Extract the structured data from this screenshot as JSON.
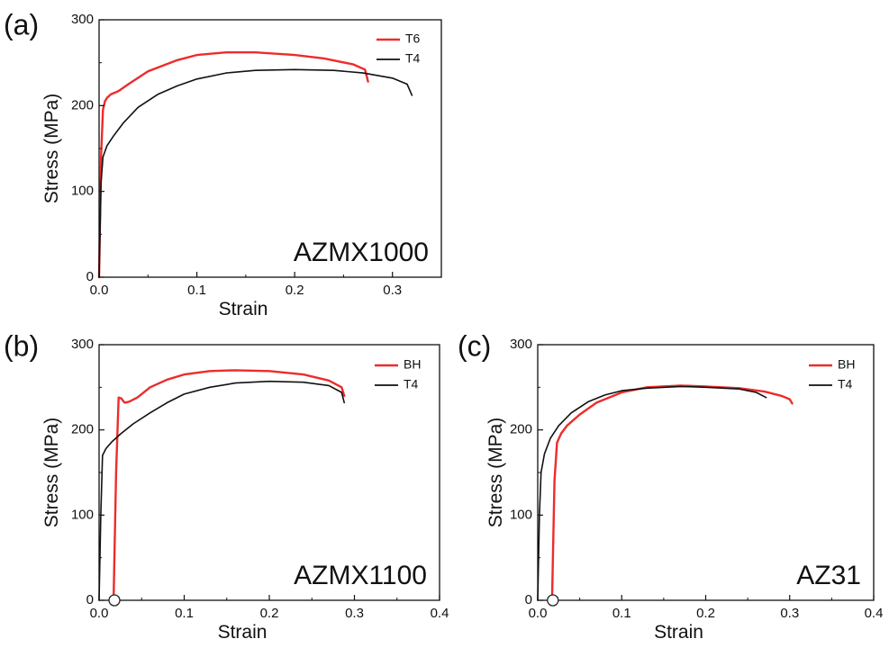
{
  "chart_data": [
    {
      "type": "line",
      "panel": "(a)",
      "sample": "AZMX1000",
      "xlabel": "Strain",
      "ylabel": "Stress (MPa)",
      "xlim": [
        0,
        0.35
      ],
      "ylim": [
        0,
        300
      ],
      "xticks": [
        "0.0",
        "0.1",
        "0.2",
        "0.3"
      ],
      "yticks": [
        "0",
        "100",
        "200",
        "300"
      ],
      "legend_position": "top-right",
      "series": [
        {
          "name": "T6",
          "color": "#ee2b2b",
          "x": [
            0.0,
            0.002,
            0.004,
            0.006,
            0.008,
            0.012,
            0.02,
            0.03,
            0.05,
            0.08,
            0.1,
            0.13,
            0.16,
            0.2,
            0.23,
            0.26,
            0.272,
            0.275
          ],
          "y": [
            0,
            140,
            195,
            205,
            209,
            213,
            217,
            225,
            240,
            253,
            259,
            262,
            262,
            259,
            255,
            248,
            242,
            228
          ]
        },
        {
          "name": "T4",
          "color": "#111111",
          "x": [
            0.0,
            0.002,
            0.004,
            0.008,
            0.015,
            0.025,
            0.04,
            0.06,
            0.08,
            0.1,
            0.13,
            0.16,
            0.2,
            0.24,
            0.27,
            0.3,
            0.315,
            0.32
          ],
          "y": [
            0,
            110,
            140,
            153,
            165,
            180,
            198,
            213,
            223,
            231,
            238,
            241,
            242,
            241,
            238,
            232,
            225,
            212
          ]
        }
      ]
    },
    {
      "type": "line",
      "panel": "(b)",
      "sample": "AZMX1100",
      "xlabel": "Strain",
      "ylabel": "Stress (MPa)",
      "xlim": [
        0,
        0.4
      ],
      "ylim": [
        0,
        300
      ],
      "xticks": [
        "0.0",
        "0.1",
        "0.2",
        "0.3",
        "0.4"
      ],
      "yticks": [
        "0",
        "100",
        "200",
        "300"
      ],
      "legend_position": "top-right",
      "marker_x": 0.018,
      "series": [
        {
          "name": "BH",
          "color": "#ee2b2b",
          "x": [
            0.017,
            0.02,
            0.023,
            0.026,
            0.03,
            0.035,
            0.045,
            0.06,
            0.08,
            0.1,
            0.13,
            0.16,
            0.2,
            0.24,
            0.27,
            0.285,
            0.288
          ],
          "y": [
            0,
            150,
            238,
            237,
            232,
            233,
            238,
            250,
            259,
            265,
            269,
            270,
            269,
            265,
            258,
            250,
            240
          ]
        },
        {
          "name": "T4",
          "color": "#111111",
          "x": [
            0.0,
            0.002,
            0.004,
            0.008,
            0.015,
            0.025,
            0.04,
            0.06,
            0.08,
            0.1,
            0.13,
            0.16,
            0.2,
            0.24,
            0.27,
            0.285,
            0.288
          ],
          "y": [
            0,
            100,
            170,
            178,
            186,
            195,
            207,
            220,
            232,
            242,
            250,
            255,
            257,
            256,
            252,
            244,
            232
          ]
        }
      ]
    },
    {
      "type": "line",
      "panel": "(c)",
      "sample": "AZ31",
      "xlabel": "Strain",
      "ylabel": "Stress (MPa)",
      "xlim": [
        0,
        0.4
      ],
      "ylim": [
        0,
        300
      ],
      "xticks": [
        "0.0",
        "0.1",
        "0.2",
        "0.3",
        "0.4"
      ],
      "yticks": [
        "0",
        "100",
        "200",
        "300"
      ],
      "legend_position": "top-right",
      "marker_x": 0.018,
      "series": [
        {
          "name": "BH",
          "color": "#ee2b2b",
          "x": [
            0.017,
            0.02,
            0.023,
            0.028,
            0.035,
            0.05,
            0.07,
            0.1,
            0.13,
            0.17,
            0.2,
            0.24,
            0.27,
            0.29,
            0.3,
            0.303
          ],
          "y": [
            0,
            140,
            185,
            196,
            205,
            218,
            232,
            244,
            250,
            252,
            251,
            249,
            245,
            240,
            236,
            231
          ]
        },
        {
          "name": "T4",
          "color": "#111111",
          "x": [
            0.0,
            0.002,
            0.004,
            0.008,
            0.015,
            0.025,
            0.04,
            0.06,
            0.08,
            0.1,
            0.13,
            0.17,
            0.2,
            0.24,
            0.26,
            0.272
          ],
          "y": [
            0,
            100,
            150,
            172,
            190,
            205,
            220,
            233,
            241,
            246,
            249,
            251,
            250,
            248,
            244,
            238
          ]
        }
      ]
    }
  ]
}
